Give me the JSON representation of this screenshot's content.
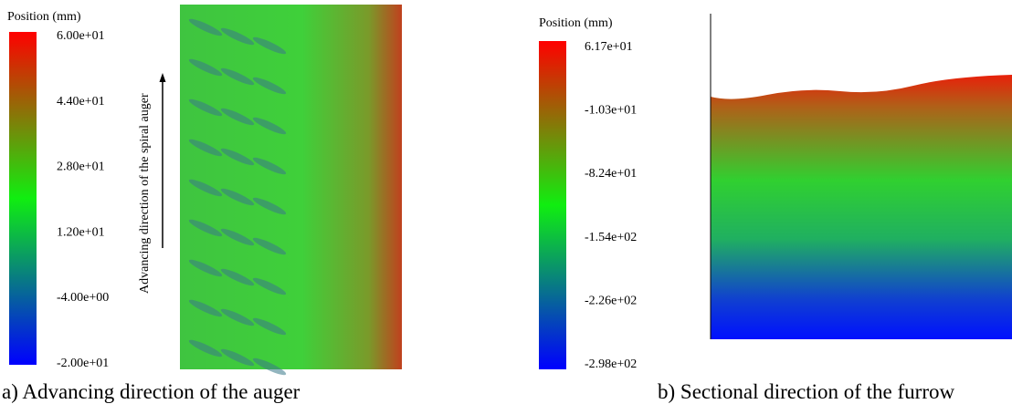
{
  "panels": [
    {
      "legend_title": "Position (mm)",
      "ticks": [
        "6.00e+01",
        "4.40e+01",
        "2.80e+01",
        "1.20e+01",
        "-4.00e+00",
        "-2.00e+01"
      ],
      "annotation": "Advancing direction of the spiral auger",
      "caption": "a) Advancing direction of the auger"
    },
    {
      "legend_title": "Position (mm)",
      "ticks": [
        "6.17e+01",
        "-1.03e+01",
        "-8.24e+01",
        "-1.54e+02",
        "-2.26e+02",
        "-2.98e+02"
      ],
      "caption": "b) Sectional direction of the furrow"
    }
  ]
}
